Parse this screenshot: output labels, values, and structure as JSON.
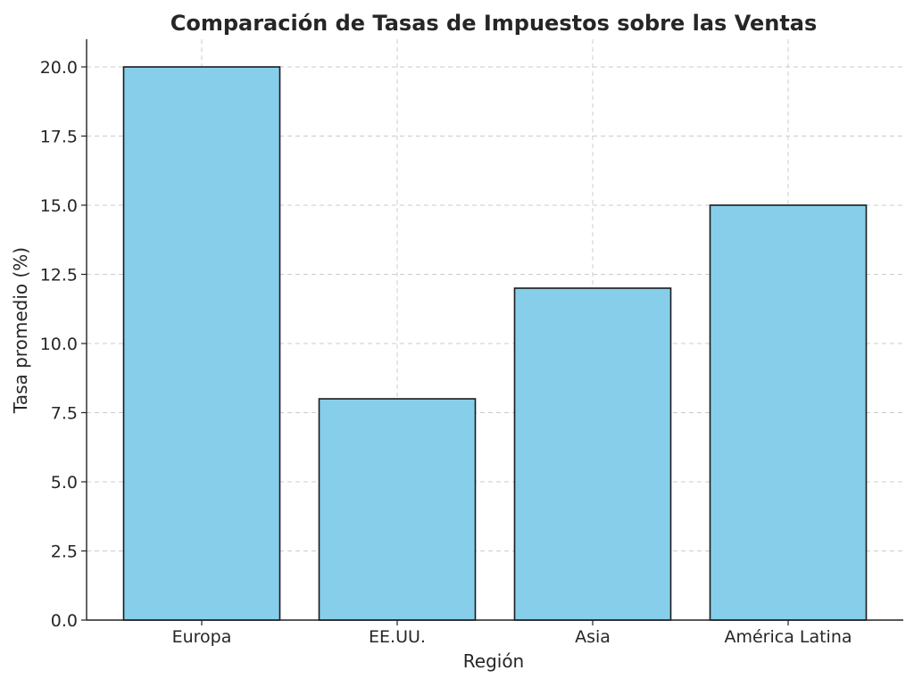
{
  "chart_data": {
    "type": "bar",
    "title": "Comparación de Tasas de Impuestos sobre las Ventas",
    "xlabel": "Región",
    "ylabel": "Tasa promedio (%)",
    "categories": [
      "Europa",
      "EE.UU.",
      "Asia",
      "América Latina"
    ],
    "values": [
      20,
      8,
      12,
      15
    ],
    "ylim": [
      0,
      21
    ],
    "yticks": [
      0,
      2.5,
      5,
      7.5,
      10,
      12.5,
      15,
      17.5,
      20
    ],
    "ytick_labels": [
      "0.0",
      "2.5",
      "5.0",
      "7.5",
      "10.0",
      "12.5",
      "15.0",
      "17.5",
      "20.0"
    ],
    "grid": true,
    "bar_color": "#87ceeb",
    "edge_color": "#1a1a1a"
  }
}
